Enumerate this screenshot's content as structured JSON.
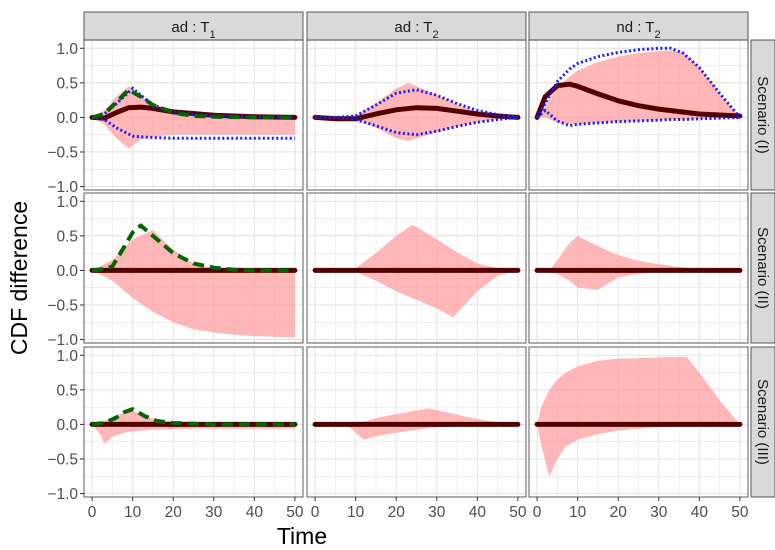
{
  "chart_data": {
    "type": "line",
    "xlabel": "Time",
    "ylabel": "CDF difference",
    "xlim": [
      -2,
      52
    ],
    "ylim": [
      -1.05,
      1.12
    ],
    "x_ticks": [
      0,
      10,
      20,
      30,
      40,
      50
    ],
    "y_ticks": [
      -1.0,
      -0.5,
      0.0,
      0.5,
      1.0
    ],
    "y_tick_labels": [
      "−1.0",
      "−0.5",
      "0.0",
      "0.5",
      "1.0"
    ],
    "grid": true,
    "columns": [
      {
        "prefix": "ad",
        "sub": "1",
        "sep": " : ",
        "letter": "T"
      },
      {
        "prefix": "ad",
        "sub": "2",
        "sep": " : ",
        "letter": "T"
      },
      {
        "prefix": "nd",
        "sub": "2",
        "sep": " : ",
        "letter": "T"
      }
    ],
    "rows": [
      "Scenario (I)",
      "Scenario (II)",
      "Scenario (III)"
    ],
    "colors": {
      "band": "#ff9999",
      "estimate": "#550000",
      "green_dashed": "#006400",
      "blue_dotted": "#1a1aff",
      "panel_bg": "#ffffff",
      "grid": "#e4e4e4",
      "strip_bg": "#d9d9d9"
    },
    "panels": [
      {
        "row": 0,
        "col": 0,
        "band_x": [
          0,
          3,
          6,
          9,
          12,
          15,
          20,
          25,
          30,
          40,
          50
        ],
        "band_upper": [
          0.0,
          0.1,
          0.3,
          0.45,
          0.32,
          0.18,
          0.08,
          0.04,
          0.02,
          0.01,
          0.01
        ],
        "band_lower": [
          0.0,
          -0.1,
          -0.3,
          -0.45,
          -0.32,
          -0.28,
          -0.25,
          -0.25,
          -0.25,
          -0.25,
          -0.25
        ],
        "estimate_x": [
          0,
          3,
          6,
          9,
          12,
          15,
          20,
          30,
          40,
          50
        ],
        "estimate_y": [
          0.0,
          -0.01,
          0.07,
          0.14,
          0.15,
          0.13,
          0.08,
          0.03,
          0.01,
          0.0
        ],
        "green_x": [
          0,
          3,
          6,
          9,
          12,
          15,
          20,
          25,
          30,
          40,
          50
        ],
        "green_y": [
          0.0,
          0.05,
          0.22,
          0.4,
          0.3,
          0.18,
          0.07,
          0.02,
          0.01,
          0.0,
          0.0
        ],
        "blue_x": [
          0,
          3,
          6,
          10,
          12,
          15,
          20,
          25,
          30,
          40,
          50
        ],
        "blue_upper": [
          0.0,
          0.05,
          0.2,
          0.42,
          0.32,
          0.18,
          0.08,
          0.04,
          0.02,
          0.01,
          0.01
        ],
        "blue_lower": [
          0.0,
          -0.03,
          -0.15,
          -0.27,
          -0.28,
          -0.29,
          -0.3,
          -0.3,
          -0.3,
          -0.3,
          -0.3
        ]
      },
      {
        "row": 0,
        "col": 1,
        "band_x": [
          0,
          5,
          10,
          15,
          20,
          23,
          28,
          33,
          38,
          43,
          50
        ],
        "band_upper": [
          0.0,
          0.0,
          0.03,
          0.2,
          0.42,
          0.5,
          0.38,
          0.24,
          0.12,
          0.05,
          0.0
        ],
        "band_lower": [
          0.0,
          0.0,
          -0.03,
          -0.15,
          -0.3,
          -0.34,
          -0.25,
          -0.16,
          -0.09,
          -0.04,
          0.0
        ],
        "estimate_x": [
          0,
          5,
          10,
          15,
          20,
          25,
          30,
          35,
          40,
          45,
          50
        ],
        "estimate_y": [
          0.0,
          -0.02,
          -0.02,
          0.05,
          0.11,
          0.14,
          0.13,
          0.09,
          0.05,
          0.02,
          0.0
        ],
        "blue_x": [
          0,
          5,
          10,
          15,
          20,
          25,
          30,
          35,
          40,
          45,
          50
        ],
        "blue_upper": [
          0.0,
          0.0,
          0.02,
          0.18,
          0.35,
          0.4,
          0.32,
          0.2,
          0.1,
          0.04,
          0.0
        ],
        "blue_lower": [
          0.0,
          0.0,
          -0.03,
          -0.12,
          -0.22,
          -0.25,
          -0.2,
          -0.13,
          -0.07,
          -0.03,
          0.0
        ]
      },
      {
        "row": 0,
        "col": 2,
        "band_x": [
          0,
          2,
          5,
          10,
          15,
          20,
          25,
          30,
          33,
          36,
          40,
          45,
          50
        ],
        "band_upper": [
          0.0,
          0.15,
          0.45,
          0.68,
          0.8,
          0.88,
          0.93,
          0.96,
          0.97,
          0.95,
          0.72,
          0.35,
          0.0
        ],
        "band_lower": [
          0.0,
          0.0,
          -0.08,
          -0.1,
          -0.08,
          -0.06,
          -0.05,
          -0.04,
          -0.03,
          -0.03,
          -0.02,
          -0.01,
          0.0
        ],
        "estimate_x": [
          0,
          2,
          5,
          8,
          10,
          15,
          20,
          25,
          30,
          40,
          50
        ],
        "estimate_y": [
          0.0,
          0.3,
          0.46,
          0.48,
          0.45,
          0.34,
          0.24,
          0.17,
          0.12,
          0.05,
          0.02
        ],
        "blue_x": [
          0,
          2,
          5,
          8,
          10,
          15,
          20,
          25,
          30,
          33,
          36,
          40,
          45,
          50
        ],
        "blue_upper": [
          0.0,
          0.2,
          0.52,
          0.7,
          0.78,
          0.88,
          0.94,
          0.98,
          1.0,
          1.0,
          0.93,
          0.72,
          0.35,
          0.0
        ],
        "blue_lower": [
          0.0,
          0.1,
          -0.05,
          -0.12,
          -0.1,
          -0.08,
          -0.06,
          -0.05,
          -0.04,
          -0.03,
          -0.03,
          -0.02,
          -0.01,
          0.0
        ]
      },
      {
        "row": 1,
        "col": 0,
        "band_x": [
          0,
          5,
          10,
          15,
          20,
          25,
          30,
          35,
          40,
          45,
          50
        ],
        "band_upper": [
          0.0,
          0.15,
          0.45,
          0.58,
          0.3,
          0.1,
          0.03,
          0.01,
          0.0,
          0.0,
          0.0
        ],
        "band_lower": [
          0.0,
          -0.15,
          -0.4,
          -0.6,
          -0.75,
          -0.85,
          -0.9,
          -0.93,
          -0.95,
          -0.96,
          -0.97
        ],
        "estimate_x": [
          0,
          50
        ],
        "estimate_y": [
          0.0,
          0.0
        ],
        "green_x": [
          0,
          3,
          5,
          8,
          10,
          12,
          15,
          20,
          25,
          30,
          35,
          40,
          50
        ],
        "green_y": [
          0.0,
          0.02,
          0.06,
          0.35,
          0.55,
          0.65,
          0.5,
          0.25,
          0.1,
          0.04,
          0.01,
          0.0,
          0.0
        ]
      },
      {
        "row": 1,
        "col": 1,
        "band_x": [
          0,
          5,
          10,
          15,
          20,
          24,
          30,
          34,
          40,
          45,
          50
        ],
        "band_upper": [
          0.0,
          0.0,
          0.03,
          0.25,
          0.5,
          0.66,
          0.45,
          0.3,
          0.1,
          0.03,
          0.0
        ],
        "band_lower": [
          0.0,
          0.0,
          -0.02,
          -0.15,
          -0.3,
          -0.4,
          -0.55,
          -0.68,
          -0.3,
          -0.08,
          0.0
        ],
        "estimate_x": [
          0,
          50
        ],
        "estimate_y": [
          0.0,
          0.0
        ]
      },
      {
        "row": 1,
        "col": 2,
        "band_x": [
          0,
          3,
          5,
          8,
          10,
          15,
          20,
          25,
          30,
          35,
          40,
          45,
          50
        ],
        "band_upper": [
          0.0,
          0.0,
          0.15,
          0.4,
          0.5,
          0.35,
          0.22,
          0.14,
          0.09,
          0.05,
          0.02,
          0.01,
          0.0
        ],
        "band_lower": [
          0.0,
          0.0,
          -0.05,
          -0.15,
          -0.25,
          -0.28,
          -0.1,
          -0.05,
          -0.02,
          -0.01,
          0.0,
          0.0,
          0.0
        ],
        "estimate_x": [
          0,
          50
        ],
        "estimate_y": [
          0.0,
          0.0
        ]
      },
      {
        "row": 2,
        "col": 0,
        "band_x": [
          0,
          2,
          3,
          5,
          8,
          10,
          12,
          15,
          20,
          25,
          30,
          40,
          50
        ],
        "band_upper": [
          0.0,
          0.02,
          0.05,
          0.1,
          0.18,
          0.2,
          0.15,
          0.08,
          0.04,
          0.02,
          0.01,
          0.0,
          0.0
        ],
        "band_lower": [
          0.0,
          -0.15,
          -0.28,
          -0.18,
          -0.12,
          -0.1,
          -0.09,
          -0.08,
          -0.07,
          -0.06,
          -0.06,
          -0.06,
          -0.06
        ],
        "estimate_x": [
          0,
          50
        ],
        "estimate_y": [
          0.0,
          0.0
        ],
        "green_x": [
          0,
          3,
          6,
          8,
          10,
          13,
          16,
          20,
          25,
          30,
          40,
          50
        ],
        "green_y": [
          0.0,
          0.02,
          0.1,
          0.18,
          0.22,
          0.12,
          0.05,
          0.02,
          0.01,
          0.0,
          0.0,
          0.0
        ]
      },
      {
        "row": 2,
        "col": 1,
        "band_x": [
          0,
          5,
          8,
          12,
          15,
          20,
          25,
          28,
          33,
          38,
          43,
          50
        ],
        "band_upper": [
          0.0,
          0.0,
          0.0,
          0.04,
          0.09,
          0.15,
          0.2,
          0.23,
          0.17,
          0.1,
          0.05,
          0.0
        ],
        "band_lower": [
          0.0,
          0.0,
          -0.02,
          -0.22,
          -0.17,
          -0.12,
          -0.08,
          -0.05,
          -0.03,
          -0.02,
          -0.01,
          0.0
        ],
        "estimate_x": [
          0,
          50
        ],
        "estimate_y": [
          0.0,
          0.0
        ]
      },
      {
        "row": 2,
        "col": 2,
        "band_x": [
          0,
          1,
          3,
          5,
          7,
          10,
          15,
          20,
          25,
          30,
          35,
          37,
          40,
          45,
          50
        ],
        "band_upper": [
          0.0,
          0.25,
          0.5,
          0.65,
          0.75,
          0.84,
          0.92,
          0.95,
          0.96,
          0.97,
          0.98,
          0.97,
          0.75,
          0.35,
          0.0
        ],
        "band_lower": [
          0.0,
          -0.3,
          -0.75,
          -0.5,
          -0.32,
          -0.22,
          -0.14,
          -0.09,
          -0.06,
          -0.04,
          -0.03,
          -0.02,
          -0.01,
          0.0,
          0.0
        ],
        "estimate_x": [
          0,
          50
        ],
        "estimate_y": [
          0.0,
          0.0
        ]
      }
    ]
  }
}
